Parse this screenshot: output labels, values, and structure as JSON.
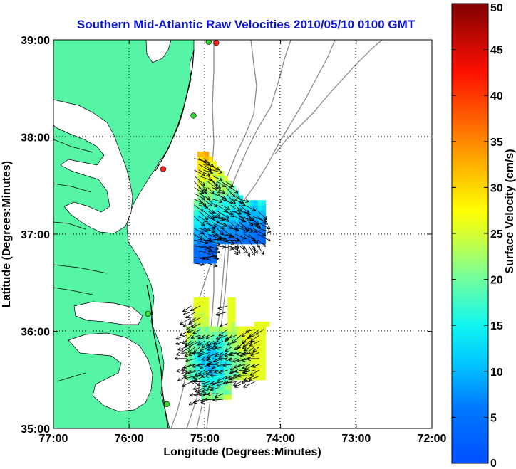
{
  "chart_data": {
    "type": "heatmap",
    "title": "Southern Mid-Atlantic Raw Velocities 2010/05/10 0100 GMT",
    "xlabel": "Longitude (Degrees:Minutes)",
    "ylabel": "Latitude (Degrees:Minutes)",
    "xlim": [
      -77,
      -72
    ],
    "ylim": [
      35,
      39
    ],
    "x_ticks": [
      {
        "value": -77,
        "label": "77:00"
      },
      {
        "value": -76,
        "label": "76:00"
      },
      {
        "value": -75,
        "label": "75:00"
      },
      {
        "value": -74,
        "label": "74:00"
      },
      {
        "value": -73,
        "label": "73:00"
      },
      {
        "value": -72,
        "label": "72:00"
      }
    ],
    "y_ticks": [
      {
        "value": 35,
        "label": "35:00"
      },
      {
        "value": 36,
        "label": "36:00"
      },
      {
        "value": 37,
        "label": "37:00"
      },
      {
        "value": 38,
        "label": "38:00"
      },
      {
        "value": 39,
        "label": "39:00"
      }
    ],
    "grid": true,
    "grid_style": "dotted",
    "colorbar": {
      "label": "Surface Velocity (cm/s)",
      "min": 0,
      "max": 50,
      "colormap": "jet",
      "ticks": [
        {
          "value": 0,
          "label": "0"
        },
        {
          "value": 5,
          "label": "5"
        },
        {
          "value": 10,
          "label": "10"
        },
        {
          "value": 15,
          "label": "15"
        },
        {
          "value": 20,
          "label": "20"
        },
        {
          "value": 25,
          "label": "25"
        },
        {
          "value": 30,
          "label": "30"
        },
        {
          "value": 35,
          "label": "35"
        },
        {
          "value": 40,
          "label": "40"
        },
        {
          "value": 45,
          "label": "45"
        },
        {
          "value": 50,
          "label": "50"
        }
      ]
    },
    "land_color": "#55f5a5",
    "coastline_color": "#000000",
    "bathymetry_color": "#8c8c8c",
    "station_markers": [
      {
        "lon": -74.85,
        "lat": 38.97,
        "status": "red"
      },
      {
        "lon": -74.95,
        "lat": 38.98,
        "status": "green"
      },
      {
        "lon": -75.15,
        "lat": 38.22,
        "status": "green"
      },
      {
        "lon": -75.55,
        "lat": 37.67,
        "status": "red"
      },
      {
        "lon": -75.75,
        "lat": 36.18,
        "status": "green"
      },
      {
        "lon": -75.5,
        "lat": 35.25,
        "status": "green"
      }
    ],
    "velocity_regions": [
      {
        "name": "",
        "lon_range": [
          -75.2,
          -74.25
        ],
        "lat_range": [
          36.7,
          37.8
        ],
        "typical_speed_cm_s": [
          5,
          32
        ],
        "dominant_direction": "southeast"
      },
      {
        "name": "",
        "lon_range": [
          -75.3,
          -74.2
        ],
        "lat_range": [
          35.3,
          36.3
        ],
        "typical_speed_cm_s": [
          5,
          25
        ],
        "dominant_direction": "west to southwest"
      }
    ]
  }
}
